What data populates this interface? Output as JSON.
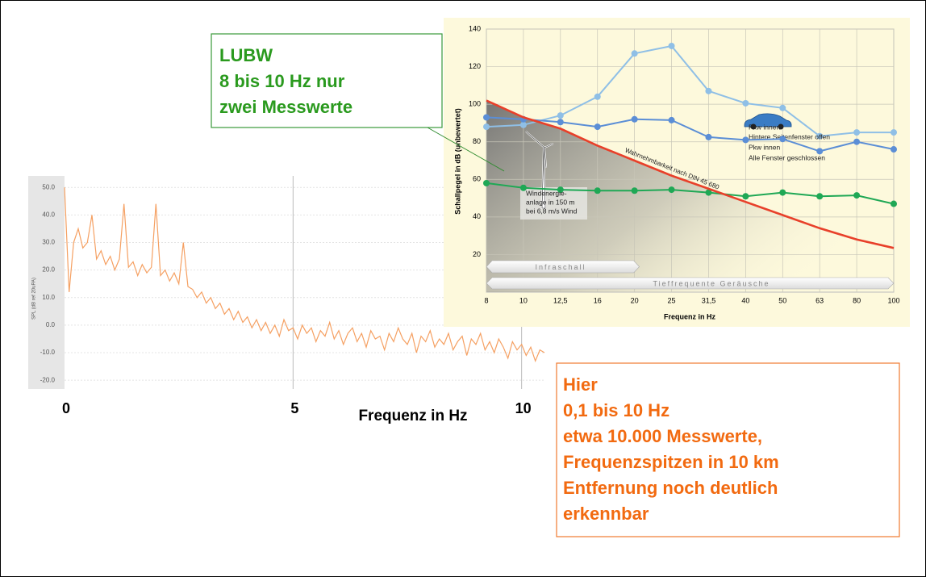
{
  "chart_data": [
    {
      "type": "line",
      "ylabel": "SPL (dB ref 20uPA)",
      "xlabel": "Frequenz in Hz",
      "color": "#f5a062",
      "xlim": [
        0,
        10.5
      ],
      "ylim": [
        -22,
        53
      ],
      "xticks": [
        0,
        5,
        10
      ],
      "yticks": [
        {
          "value": 50,
          "label": "50.0"
        },
        {
          "value": 40,
          "label": "40.0"
        },
        {
          "value": 30,
          "label": "30.0"
        },
        {
          "value": 20,
          "label": "20.0"
        },
        {
          "value": 10,
          "label": "10.0"
        },
        {
          "value": 0,
          "label": "0.0"
        },
        {
          "value": -10,
          "label": "-10.0"
        },
        {
          "value": -20,
          "label": "-20.0"
        }
      ],
      "grid": true,
      "x": [
        0,
        0.1,
        0.2,
        0.3,
        0.4,
        0.5,
        0.6,
        0.7,
        0.8,
        0.9,
        1.0,
        1.1,
        1.2,
        1.3,
        1.4,
        1.5,
        1.6,
        1.7,
        1.8,
        1.9,
        2.0,
        2.1,
        2.2,
        2.3,
        2.4,
        2.5,
        2.6,
        2.7,
        2.8,
        2.9,
        3.0,
        3.1,
        3.2,
        3.3,
        3.4,
        3.5,
        3.6,
        3.7,
        3.8,
        3.9,
        4.0,
        4.1,
        4.2,
        4.3,
        4.4,
        4.5,
        4.6,
        4.7,
        4.8,
        4.9,
        5.0,
        5.1,
        5.2,
        5.3,
        5.4,
        5.5,
        5.6,
        5.7,
        5.8,
        5.9,
        6.0,
        6.1,
        6.2,
        6.3,
        6.4,
        6.5,
        6.6,
        6.7,
        6.8,
        6.9,
        7.0,
        7.1,
        7.2,
        7.3,
        7.4,
        7.5,
        7.6,
        7.7,
        7.8,
        7.9,
        8.0,
        8.1,
        8.2,
        8.3,
        8.4,
        8.5,
        8.6,
        8.7,
        8.8,
        8.9,
        9.0,
        9.1,
        9.2,
        9.3,
        9.4,
        9.5,
        9.6,
        9.7,
        9.8,
        9.9,
        10.0,
        10.1,
        10.2,
        10.3,
        10.4,
        10.5
      ],
      "values": [
        50,
        12,
        30,
        35,
        28,
        30,
        40,
        24,
        27,
        22,
        25,
        20,
        24,
        44,
        21,
        23,
        18,
        22,
        19,
        21,
        44,
        18,
        20,
        16,
        19,
        15,
        30,
        14,
        13,
        10,
        12,
        8,
        10,
        6,
        8,
        4,
        6,
        2,
        5,
        1,
        3,
        -1,
        2,
        -2,
        1,
        -3,
        0,
        -4,
        2,
        -2,
        -1,
        -5,
        0,
        -3,
        -1,
        -6,
        -2,
        -4,
        1,
        -5,
        -2,
        -7,
        -3,
        -1,
        -6,
        -3,
        -8,
        -2,
        -5,
        -4,
        -9,
        -3,
        -6,
        -1,
        -5,
        -7,
        -3,
        -10,
        -4,
        -6,
        -2,
        -8,
        -5,
        -7,
        -3,
        -9,
        -6,
        -4,
        -11,
        -5,
        -7,
        -3,
        -9,
        -6,
        -10,
        -5,
        -8,
        -12,
        -6,
        -9,
        -7,
        -11,
        -8,
        -13,
        -9,
        -10
      ]
    },
    {
      "type": "line",
      "ylabel": "Schallpegel in dB (unbewertet)",
      "xlabel": "Frequenz in Hz",
      "categories": [
        "8",
        "10",
        "12,5",
        "16",
        "20",
        "25",
        "31,5",
        "40",
        "50",
        "63",
        "80",
        "100"
      ],
      "ylim": [
        0,
        140
      ],
      "yticks": [
        20,
        40,
        60,
        80,
        100,
        120,
        140
      ],
      "grid": true,
      "series": [
        {
          "name": [
            "Pkw innen",
            "Hintere Seitenfenster offen"
          ],
          "color": "#8fbfe6",
          "markers": true,
          "values": [
            88,
            89,
            94,
            104,
            127,
            131,
            107,
            100.5,
            98,
            83,
            85,
            85
          ]
        },
        {
          "name": [
            "Pkw innen",
            "Alle Fenster geschlossen"
          ],
          "color": "#5b8ed6",
          "markers": true,
          "values": [
            93,
            92,
            90.5,
            88,
            92,
            91.5,
            82.5,
            81,
            81.5,
            75,
            80,
            76
          ]
        },
        {
          "name": [
            "Windenergie-",
            "anlage in 150 m",
            "bei 6,8 m/s Wind"
          ],
          "color": "#1fa855",
          "markers": true,
          "values": [
            58,
            55.5,
            54.5,
            54,
            54,
            54.5,
            53,
            51,
            53,
            51,
            51.5,
            47
          ]
        },
        {
          "name": [
            "Wahrnehmbarkeit nach DIN 45 680"
          ],
          "color": "#e8402a",
          "markers": false,
          "values": [
            102,
            93,
            87,
            78,
            70,
            62,
            55,
            48,
            41,
            34,
            28,
            23.5
          ]
        }
      ],
      "bands": [
        {
          "label": "Infraschall",
          "start": "8",
          "end": "20"
        },
        {
          "label": "Tieffrequente Geräusche",
          "start": "8",
          "end": "100"
        }
      ]
    }
  ],
  "boxes": {
    "lubw": [
      "LUBW",
      "8 bis 10 Hz  nur",
      "zwei Messwerte"
    ],
    "hier": [
      "Hier",
      "0,1 bis 10 Hz",
      "etwa 10.000 Messwerte,",
      "Frequenzspitzen in 10 km",
      "Entfernung noch deutlich",
      "erkennbar"
    ]
  }
}
